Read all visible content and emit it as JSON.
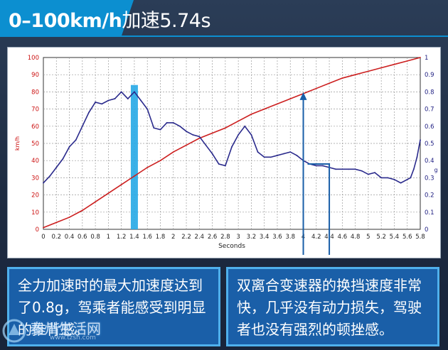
{
  "title": {
    "speed": "0–100km/h",
    "label": "加速5.74s"
  },
  "chart_data": {
    "type": "line",
    "xlabel": "Seconds",
    "ylabel_left": "km/h",
    "ylabel_right": "g",
    "xlim": [
      0,
      5.8
    ],
    "ylim_left": [
      0,
      100
    ],
    "ylim_right": [
      0,
      1
    ],
    "x_ticks": [
      "0",
      "0.2",
      "0.4",
      "0.6",
      "0.8",
      "1",
      "1.2",
      "1.4",
      "1.6",
      "1.8",
      "2",
      "2.2",
      "2.4",
      "2.6",
      "2.8",
      "3",
      "3.2",
      "3.4",
      "3.6",
      "3.8",
      "4",
      "4.2",
      "4.4",
      "4.6",
      "4.8",
      "5",
      "5.2",
      "5.4",
      "5.6",
      "5.8"
    ],
    "y_ticks_left": [
      "0",
      "10",
      "20",
      "30",
      "40",
      "50",
      "60",
      "70",
      "80",
      "90",
      "100"
    ],
    "y_ticks_right": [
      "0",
      "0.1",
      "0.2",
      "0.3",
      "0.4",
      "0.5",
      "0.6",
      "0.7",
      "0.8",
      "0.9",
      "1"
    ],
    "grid": true,
    "series": [
      {
        "name": "",
        "axis": "left",
        "color": "#cc1f1f",
        "x": [
          0,
          0.2,
          0.4,
          0.6,
          0.8,
          1.0,
          1.2,
          1.4,
          1.6,
          1.8,
          2.0,
          2.2,
          2.4,
          2.6,
          2.8,
          3.0,
          3.2,
          3.4,
          3.6,
          3.8,
          4.0,
          4.2,
          4.4,
          4.6,
          4.8,
          5.0,
          5.2,
          5.4,
          5.6,
          5.8
        ],
        "y": [
          1,
          4,
          7,
          11,
          16,
          21,
          26,
          31,
          36,
          40,
          45,
          49,
          53,
          56,
          59,
          63,
          67,
          70,
          73,
          76,
          79,
          82,
          85,
          88,
          90,
          92,
          94,
          96,
          98,
          100
        ]
      },
      {
        "name": "",
        "axis": "right",
        "color": "#2a2a8c",
        "x": [
          0,
          0.1,
          0.2,
          0.3,
          0.4,
          0.5,
          0.6,
          0.7,
          0.8,
          0.9,
          1.0,
          1.1,
          1.2,
          1.3,
          1.4,
          1.5,
          1.6,
          1.7,
          1.8,
          1.9,
          2.0,
          2.1,
          2.2,
          2.3,
          2.4,
          2.5,
          2.6,
          2.7,
          2.8,
          2.9,
          3.0,
          3.1,
          3.2,
          3.3,
          3.4,
          3.5,
          3.6,
          3.7,
          3.8,
          3.9,
          4.0,
          4.1,
          4.2,
          4.3,
          4.4,
          4.5,
          4.6,
          4.7,
          4.8,
          4.9,
          5.0,
          5.1,
          5.2,
          5.3,
          5.4,
          5.5,
          5.6,
          5.65,
          5.7,
          5.75,
          5.8
        ],
        "y": [
          0.27,
          0.31,
          0.36,
          0.41,
          0.48,
          0.52,
          0.6,
          0.68,
          0.74,
          0.73,
          0.75,
          0.76,
          0.8,
          0.76,
          0.8,
          0.75,
          0.7,
          0.59,
          0.58,
          0.62,
          0.62,
          0.6,
          0.57,
          0.55,
          0.54,
          0.49,
          0.44,
          0.38,
          0.37,
          0.48,
          0.55,
          0.6,
          0.55,
          0.45,
          0.42,
          0.42,
          0.43,
          0.44,
          0.45,
          0.43,
          0.4,
          0.38,
          0.37,
          0.37,
          0.36,
          0.35,
          0.35,
          0.35,
          0.35,
          0.34,
          0.32,
          0.33,
          0.3,
          0.3,
          0.29,
          0.27,
          0.29,
          0.3,
          0.35,
          0.42,
          0.52
        ]
      }
    ],
    "highlight_bar": {
      "x": 1.4,
      "from": 0,
      "to": 0.84,
      "color": "#2aaae6"
    }
  },
  "callouts": {
    "left": "全力加速时的最大加速度达到了0.8g，驾乘者能感受到明显的推背感。",
    "right": "双离合变速器的换挡速度非常快，几乎没有动力损失，驾驶者也没有强烈的顿挫感。"
  },
  "watermark": {
    "text": "泰州生活网",
    "sub": "www.tzsh.com"
  }
}
